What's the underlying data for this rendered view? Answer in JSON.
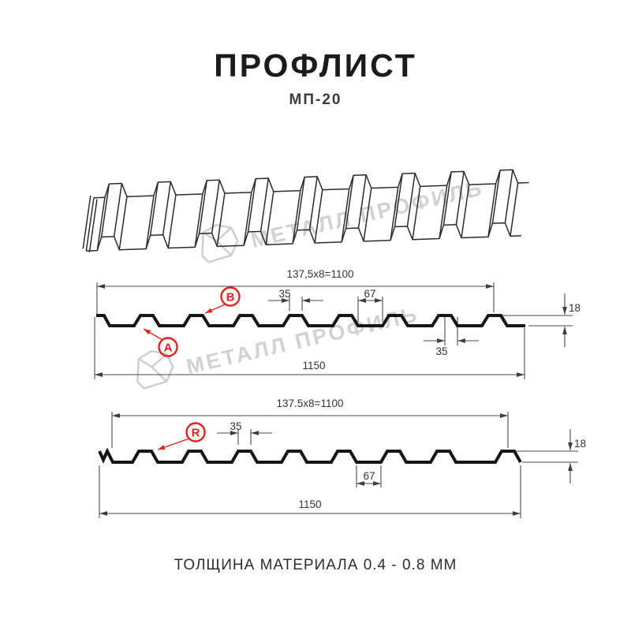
{
  "title": "ПРОФЛИСТ",
  "subtitle": "МП-20",
  "footer": "ТОЛЩИНА МАТЕРИАЛА 0.4 - 0.8 ММ",
  "watermark": {
    "text": "МЕТАЛЛ ПРОФИЛЬ"
  },
  "drawing1": {
    "dim_total_top": "137,5x8=1100",
    "dim_rib_top": "35",
    "dim_valley": "67",
    "dim_height": "18",
    "dim_rib_bottom": "35",
    "dim_overall": "1150",
    "label_a": "А",
    "label_b": "В"
  },
  "drawing2": {
    "dim_total_top": "137.5x8=1100",
    "dim_rib_top": "35",
    "dim_height": "18",
    "dim_valley": "67",
    "dim_overall": "1150",
    "label_r": "R"
  },
  "colors": {
    "accent_red": "#e8201e",
    "dimension_line": "#4a4a4a",
    "profile_line": "#161616",
    "watermark": "#d2d2d2"
  }
}
